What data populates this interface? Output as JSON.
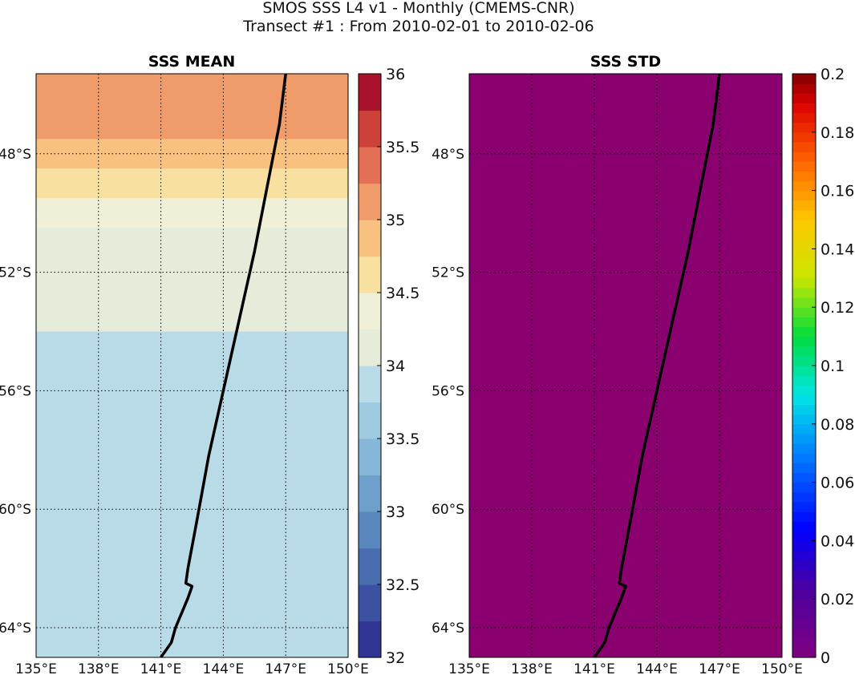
{
  "figure": {
    "title_line1": "SMOS SSS L4 v1 - Monthly (CMEMS-CNR)",
    "title_line2": "Transect #1 : From 2010-02-01 to 2010-02-06"
  },
  "chart_data": [
    {
      "type": "heatmap",
      "title": "SSS MEAN",
      "xlim": [
        135,
        150
      ],
      "ylim": [
        -65,
        -45.3
      ],
      "xticks": [
        "135°E",
        "138°E",
        "141°E",
        "144°E",
        "147°E",
        "150°E"
      ],
      "yticks": [
        "48°S",
        "52°S",
        "56°S",
        "60°S",
        "64°S"
      ],
      "grid": true,
      "colormap": "RdYlBu_r",
      "clim": [
        32,
        36
      ],
      "colorbar_ticks": [
        "32",
        "32.5",
        "33",
        "33.5",
        "34",
        "34.5",
        "35",
        "35.5",
        "36"
      ],
      "salinity_by_latitude": [
        {
          "lat": -45.3,
          "sss": 35.1
        },
        {
          "lat": -46.5,
          "sss": 35.0
        },
        {
          "lat": -47.5,
          "sss": 34.8
        },
        {
          "lat": -48.5,
          "sss": 34.6
        },
        {
          "lat": -49.5,
          "sss": 34.4
        },
        {
          "lat": -50.5,
          "sss": 34.2
        },
        {
          "lat": -51.5,
          "sss": 34.1
        },
        {
          "lat": -52.5,
          "sss": 34.05
        },
        {
          "lat": -54,
          "sss": 33.95
        },
        {
          "lat": -56,
          "sss": 33.8
        },
        {
          "lat": -60,
          "sss": 33.8
        },
        {
          "lat": -63,
          "sss": 33.85
        },
        {
          "lat": -65,
          "sss": 33.85
        }
      ],
      "transect": [
        [
          147.0,
          -45.3
        ],
        [
          146.7,
          -47.0
        ],
        [
          146.0,
          -49.5
        ],
        [
          145.5,
          -51.3
        ],
        [
          144.7,
          -53.8
        ],
        [
          144.0,
          -56.0
        ],
        [
          143.3,
          -58.2
        ],
        [
          142.7,
          -60.5
        ],
        [
          142.3,
          -62.0
        ],
        [
          142.2,
          -62.5
        ],
        [
          142.5,
          -62.6
        ],
        [
          142.3,
          -63.0
        ],
        [
          141.7,
          -64.0
        ],
        [
          141.5,
          -64.5
        ],
        [
          141.2,
          -64.8
        ],
        [
          141.0,
          -65.0
        ]
      ]
    },
    {
      "type": "heatmap",
      "title": "SSS STD",
      "xlim": [
        135,
        150
      ],
      "ylim": [
        -65,
        -45.3
      ],
      "xticks": [
        "135°E",
        "138°E",
        "141°E",
        "144°E",
        "147°E",
        "150°E"
      ],
      "yticks": [
        "48°S",
        "52°S",
        "56°S",
        "60°S",
        "64°S"
      ],
      "grid": true,
      "colormap": "jet-like",
      "clim": [
        0,
        0.2
      ],
      "colorbar_ticks": [
        "0",
        "0.02",
        "0.04",
        "0.06",
        "0.08",
        "0.1",
        "0.12",
        "0.14",
        "0.16",
        "0.18",
        "0.2"
      ],
      "field_value": 0,
      "field_color": "#8b006f",
      "transect": [
        [
          147.0,
          -45.3
        ],
        [
          146.7,
          -47.0
        ],
        [
          146.0,
          -49.5
        ],
        [
          145.5,
          -51.3
        ],
        [
          144.7,
          -53.8
        ],
        [
          144.0,
          -56.0
        ],
        [
          143.3,
          -58.2
        ],
        [
          142.7,
          -60.5
        ],
        [
          142.3,
          -62.0
        ],
        [
          142.2,
          -62.5
        ],
        [
          142.5,
          -62.6
        ],
        [
          142.3,
          -63.0
        ],
        [
          141.7,
          -64.0
        ],
        [
          141.5,
          -64.5
        ],
        [
          141.2,
          -64.8
        ],
        [
          141.0,
          -65.0
        ]
      ]
    }
  ]
}
